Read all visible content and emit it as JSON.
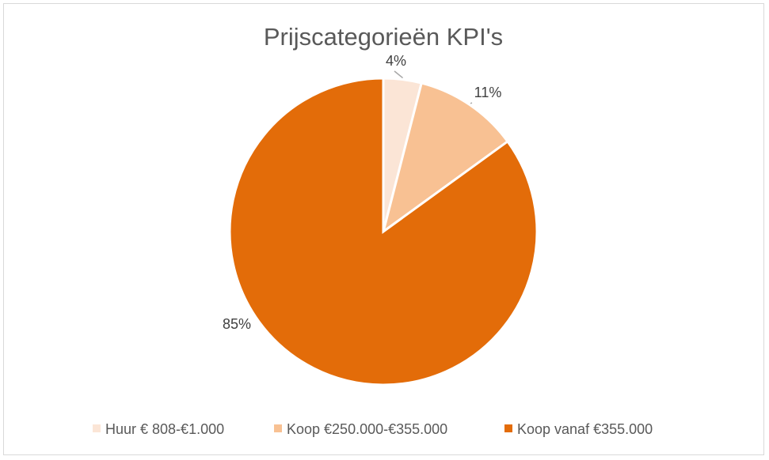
{
  "chart_data": {
    "type": "pie",
    "title": "Prijscategorieën KPI's",
    "categories": [
      "Huur € 808-€1.000",
      "Koop €250.000-€355.000",
      "Koop vanaf €355.000"
    ],
    "values": [
      4,
      11,
      85
    ],
    "labels": [
      "4%",
      "11%",
      "85%"
    ],
    "colors": [
      "#FBE5D6",
      "#F8C193",
      "#E36C09"
    ],
    "legend": "bottom"
  }
}
